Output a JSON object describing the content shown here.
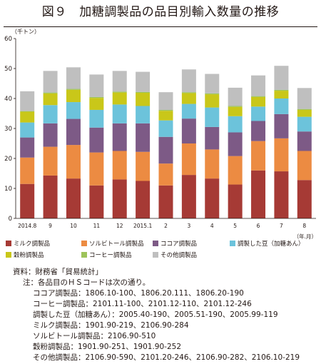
{
  "title": "図９　加糖調製品の品目別輸入数量の推移",
  "chart_data": {
    "type": "bar",
    "stacked": true,
    "ylabel": "（千トン）",
    "xlabel": "（年.月）",
    "ylim": [
      0,
      60
    ],
    "yticks": [
      0,
      10,
      20,
      30,
      40,
      50,
      60
    ],
    "grid": false,
    "legend_position": "bottom",
    "categories": [
      "2014.8",
      "9",
      "10",
      "11",
      "12",
      "2015.1",
      "2",
      "3",
      "4",
      "5",
      "6",
      "7",
      "8"
    ],
    "series": [
      {
        "name": "ミルク調製品",
        "color": "#A63A35",
        "values": [
          11.5,
          14.3,
          13.3,
          11.0,
          13.0,
          12.5,
          11.0,
          14.5,
          13.3,
          11.3,
          16.0,
          15.7,
          12.8
        ]
      },
      {
        "name": "ソルビトール調製品",
        "color": "#EC8B42",
        "values": [
          8.8,
          9.6,
          11.2,
          11.0,
          9.5,
          9.7,
          7.3,
          10.5,
          9.7,
          9.5,
          9.8,
          11.0,
          9.7
        ]
      },
      {
        "name": "ココア調製品",
        "color": "#7D5A86",
        "values": [
          6.7,
          7.8,
          8.7,
          8.3,
          9.2,
          9.5,
          8.9,
          8.3,
          7.5,
          7.9,
          6.7,
          8.1,
          6.5
        ]
      },
      {
        "name": "調製した豆（加糖あん）",
        "color": "#6CC3DB",
        "values": [
          5.0,
          6.1,
          5.6,
          5.9,
          6.3,
          5.8,
          5.5,
          4.9,
          6.5,
          5.4,
          4.8,
          5.2,
          4.9
        ]
      },
      {
        "name": "穀粉調製品",
        "color": "#C9C719",
        "values": [
          3.6,
          3.9,
          4.1,
          4.0,
          4.0,
          4.4,
          3.2,
          3.6,
          4.4,
          3.1,
          3.2,
          2.6,
          2.3
        ]
      },
      {
        "name": "コーヒー調製品",
        "color": "#9DC35A",
        "values": [
          0.2,
          0.3,
          0.3,
          0.3,
          0.3,
          0.3,
          0.3,
          0.3,
          0.3,
          0.3,
          0.3,
          0.3,
          0.3
        ]
      },
      {
        "name": "その他調製品",
        "color": "#BFBFBF",
        "values": [
          6.6,
          7.2,
          7.2,
          7.5,
          6.9,
          6.7,
          5.9,
          7.6,
          6.5,
          6.1,
          6.9,
          8.0,
          7.0
        ]
      }
    ]
  },
  "notes": [
    "資料：財務省「貿易統計」",
    "注：各品目のＨＳコードは次の通り。",
    "ココア調製品：1806.10-100、1806.20.111、1806.20-190",
    "コーヒー調製品：2101.11-100、2101.12-110、2101.12-246",
    "調製した豆（加糖あん）：2005.40-190、2005.51-190、2005.99-119",
    "ミルク調製品：1901.90-219、2106.90-284",
    "ソルビトール調製品：2106.90-510",
    "穀粉調製品：1901.90-251、1901.90-252",
    "その他調製品：2106.90-590、2101.20-246、2106.90-282、2106.10-219"
  ]
}
